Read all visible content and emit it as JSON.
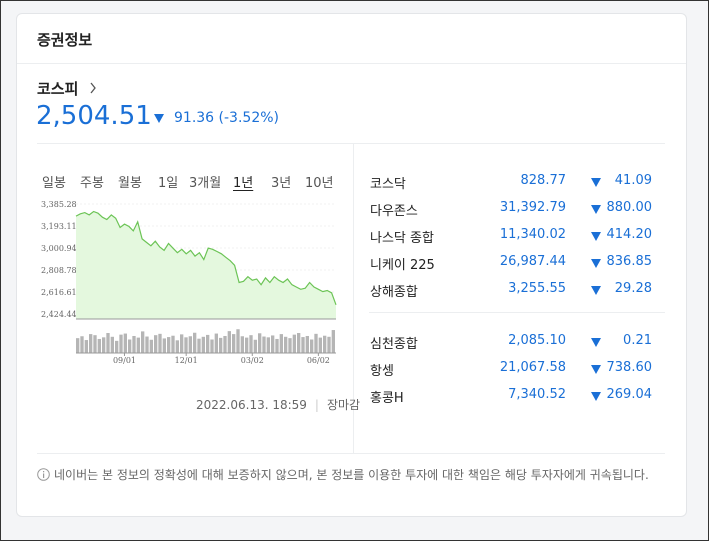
{
  "header": {
    "title": "증권정보"
  },
  "main_index": {
    "name": "코스피",
    "value": "2,504.51",
    "change": "91.36",
    "change_rate": "(-3.52%)"
  },
  "tabs": {
    "items": [
      "일봉",
      "주봉",
      "월봉",
      "1일",
      "3개월",
      "1년",
      "3년",
      "10년"
    ],
    "selected": 5
  },
  "chart_data": {
    "type": "line",
    "color": "#6cc456",
    "fill": "#e4f8de",
    "values": [
      3280,
      3300,
      3310,
      3290,
      3320,
      3305,
      3270,
      3250,
      3290,
      3260,
      3180,
      3210,
      3190,
      3150,
      3230,
      3080,
      3050,
      3020,
      3060,
      3010,
      2980,
      3040,
      3000,
      2960,
      2990,
      2950,
      2980,
      2930,
      2960,
      2900,
      3000,
      2990,
      2970,
      2950,
      2920,
      2890,
      2850,
      2700,
      2710,
      2750,
      2720,
      2730,
      2680,
      2740,
      2700,
      2750,
      2720,
      2700,
      2730,
      2680,
      2660,
      2640,
      2650,
      2700,
      2660,
      2640,
      2620,
      2630,
      2610,
      2504.51
    ],
    "volume": [
      55,
      62,
      48,
      70,
      66,
      52,
      58,
      74,
      60,
      45,
      68,
      72,
      50,
      63,
      57,
      80,
      61,
      49,
      66,
      71,
      54,
      59,
      64,
      47,
      69,
      58,
      62,
      75,
      53,
      60,
      67,
      50,
      72,
      56,
      63,
      81,
      70,
      88,
      62,
      57,
      66,
      49,
      73,
      61,
      58,
      65,
      52,
      70,
      60,
      55,
      68,
      74,
      59,
      63,
      50,
      71,
      57,
      64,
      60,
      85
    ],
    "volume_ylim": [
      0,
      100
    ],
    "xlim": [
      0,
      59
    ],
    "xticks": [
      {
        "value": 11,
        "label": "09/01"
      },
      {
        "value": 25,
        "label": "12/01"
      },
      {
        "value": 40,
        "label": "03/02"
      },
      {
        "value": 55,
        "label": "06/02"
      }
    ],
    "ylim": [
      2424.44,
      3385.28
    ],
    "yticks": [
      {
        "value": 2424.44,
        "label": "2,424.44"
      },
      {
        "value": 2616.61,
        "label": "2,616.61"
      },
      {
        "value": 2808.78,
        "label": "2,808.78"
      },
      {
        "value": 3000.94,
        "label": "3,000.94"
      },
      {
        "value": 3193.11,
        "label": "3,193.11"
      },
      {
        "value": 3385.28,
        "label": "3,385.28"
      }
    ]
  },
  "timestamp": {
    "date": "2022.06.13. 18:59",
    "status": "장마감"
  },
  "indices": [
    [
      {
        "name": "코스닥",
        "value": "828.77",
        "change": "41.09"
      },
      {
        "name": "다우존스",
        "value": "31,392.79",
        "change": "880.00"
      },
      {
        "name": "나스닥 종합",
        "value": "11,340.02",
        "change": "414.20"
      },
      {
        "name": "니케이 225",
        "value": "26,987.44",
        "change": "836.85"
      },
      {
        "name": "상해종합",
        "value": "3,255.55",
        "change": "29.28"
      }
    ],
    [
      {
        "name": "심천종합",
        "value": "2,085.10",
        "change": "0.21"
      },
      {
        "name": "항셍",
        "value": "21,067.58",
        "change": "738.60"
      },
      {
        "name": "홍콩H",
        "value": "7,340.52",
        "change": "269.04"
      }
    ]
  ],
  "footer": {
    "note": "네이버는 본 정보의 정확성에 대해 보증하지 않으며, 본 정보를 이용한 투자에 대한 책임은 해당 투자자에게 귀속됩니다."
  }
}
